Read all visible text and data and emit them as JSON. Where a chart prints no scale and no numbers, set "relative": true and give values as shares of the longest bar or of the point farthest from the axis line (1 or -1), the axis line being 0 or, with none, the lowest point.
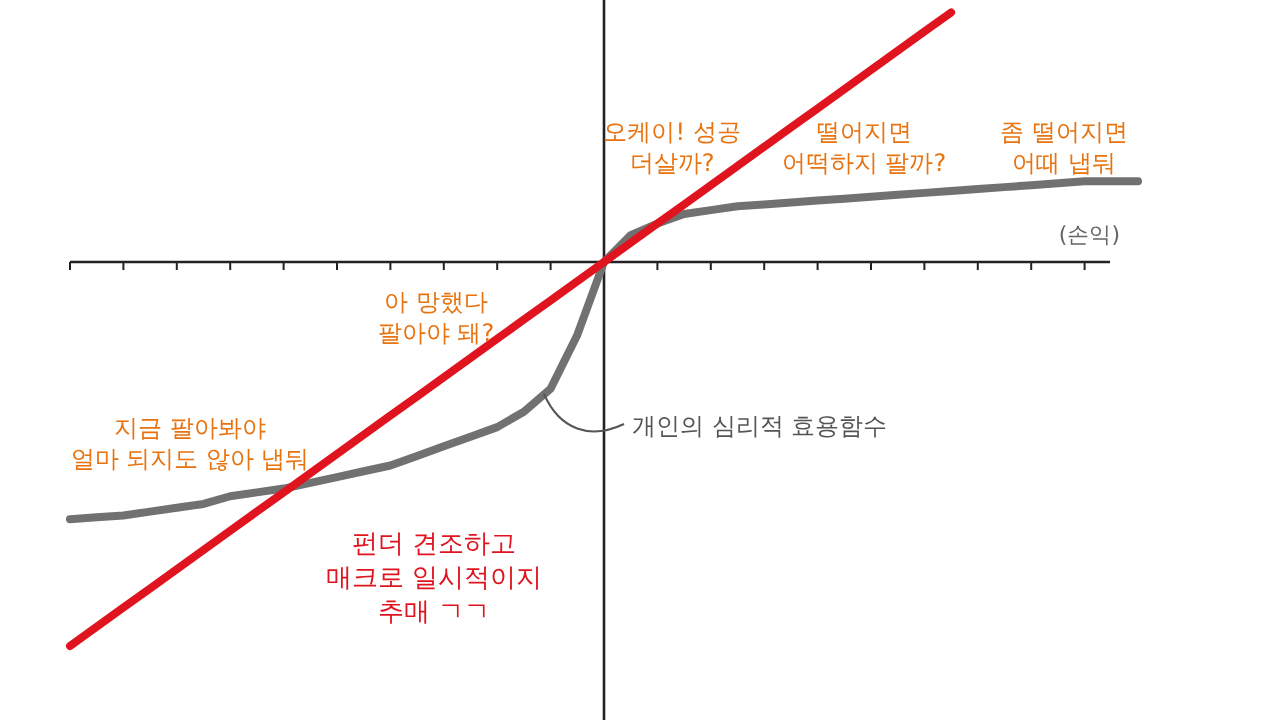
{
  "chart_data": {
    "type": "line",
    "relative": true,
    "categories": [
      null,
      null,
      null,
      null,
      null,
      null,
      null,
      null,
      null,
      null,
      null,
      null,
      null,
      null,
      null,
      null,
      null,
      null,
      null,
      null,
      null,
      null,
      null,
      null,
      null,
      null,
      null,
      null,
      null,
      null,
      null,
      null,
      null,
      null,
      null,
      null,
      null,
      null,
      null,
      null,
      null
    ],
    "series": [
      {
        "color": "#e0141e",
        "values": [
          -1,
          -0.95,
          -0.9,
          -0.85,
          -0.8,
          -0.75,
          -0.7,
          -0.65,
          -0.6,
          -0.55,
          -0.5,
          -0.45,
          -0.4,
          -0.35,
          -0.3,
          -0.25,
          -0.2,
          -0.15,
          -0.1,
          -0.05,
          0,
          0.05,
          0.1,
          0.15,
          0.2,
          0.25,
          0.3,
          0.35,
          0.4,
          0.45,
          0.5,
          0.55,
          0.6,
          0.65,
          null,
          null,
          null,
          null,
          null,
          null,
          null
        ]
      },
      {
        "color": "#717171",
        "values": [
          -0.67,
          -0.665,
          -0.66,
          -0.65,
          -0.64,
          -0.63,
          -0.61,
          -0.6,
          -0.59,
          -0.575,
          -0.56,
          -0.545,
          -0.53,
          -0.505,
          -0.48,
          -0.455,
          -0.43,
          -0.39,
          -0.33,
          -0.19,
          0,
          0.07,
          0.1,
          0.125,
          0.135,
          0.145,
          0.15,
          0.155,
          0.16,
          0.165,
          0.17,
          0.175,
          0.18,
          0.185,
          0.19,
          0.195,
          0.2,
          0.205,
          0.21,
          0.21,
          0.21
        ]
      }
    ],
    "annotations": [
      "오케이! 성공\n더살까?",
      "떨어지면\n어떡하지 팔까?",
      "좀 떨어지면\n어때 냅둬",
      "(손익)",
      "아 망했다\n팔아야 돼?",
      "지금 팔아봐야\n얼마 되지도 않아 냅둬",
      "개인의 심리적 효용함수",
      "펀더 견조하고\n매크로 일시적이지\n추매 ㄱㄱ"
    ]
  }
}
